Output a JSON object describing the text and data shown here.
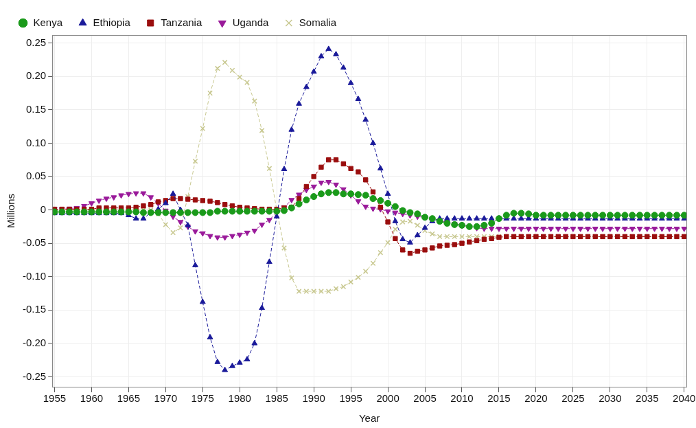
{
  "chart_data": {
    "type": "line",
    "xlabel": "Year",
    "ylabel": "Millions",
    "x": [
      1955,
      1956,
      1957,
      1958,
      1959,
      1960,
      1961,
      1962,
      1963,
      1964,
      1965,
      1966,
      1967,
      1968,
      1969,
      1970,
      1971,
      1972,
      1973,
      1974,
      1975,
      1976,
      1977,
      1978,
      1979,
      1980,
      1981,
      1982,
      1983,
      1984,
      1985,
      1986,
      1987,
      1988,
      1989,
      1990,
      1991,
      1992,
      1993,
      1994,
      1995,
      1996,
      1997,
      1998,
      1999,
      2000,
      2001,
      2002,
      2003,
      2004,
      2005,
      2006,
      2007,
      2008,
      2009,
      2010,
      2011,
      2012,
      2013,
      2014,
      2015,
      2016,
      2017,
      2018,
      2019,
      2020,
      2021,
      2022,
      2023,
      2024,
      2025,
      2026,
      2027,
      2028,
      2029,
      2030,
      2031,
      2032,
      2033,
      2034,
      2035,
      2036,
      2037,
      2038,
      2039,
      2040
    ],
    "series": [
      {
        "name": "Kenya",
        "color": "#1a9a1a",
        "marker": "circle",
        "values": [
          -0.003,
          -0.003,
          -0.003,
          -0.003,
          -0.003,
          -0.003,
          -0.003,
          -0.003,
          -0.003,
          -0.003,
          -0.003,
          -0.003,
          -0.004,
          -0.004,
          -0.004,
          -0.004,
          -0.004,
          -0.004,
          -0.004,
          -0.004,
          -0.004,
          -0.004,
          -0.002,
          -0.002,
          -0.002,
          -0.002,
          -0.002,
          -0.002,
          -0.002,
          -0.002,
          -0.002,
          -0.001,
          0.003,
          0.009,
          0.015,
          0.02,
          0.024,
          0.026,
          0.026,
          0.024,
          0.024,
          0.023,
          0.022,
          0.017,
          0.014,
          0.01,
          0.005,
          -0.001,
          -0.004,
          -0.006,
          -0.011,
          -0.013,
          -0.017,
          -0.02,
          -0.022,
          -0.023,
          -0.025,
          -0.025,
          -0.023,
          -0.02,
          -0.013,
          -0.008,
          -0.005,
          -0.005,
          -0.006,
          -0.008,
          -0.008,
          -0.008,
          -0.008,
          -0.008,
          -0.008,
          -0.008,
          -0.008,
          -0.008,
          -0.008,
          -0.008,
          -0.008,
          -0.008,
          -0.008,
          -0.008,
          -0.008,
          -0.008,
          -0.008,
          -0.008,
          -0.008,
          -0.008
        ]
      },
      {
        "name": "Ethiopia",
        "color": "#1a1a9a",
        "marker": "triangle",
        "values": [
          -0.005,
          -0.005,
          -0.005,
          -0.005,
          -0.005,
          -0.005,
          -0.005,
          -0.005,
          -0.005,
          -0.005,
          -0.008,
          -0.013,
          -0.013,
          -0.004,
          0.001,
          0.01,
          0.024,
          0,
          -0.023,
          -0.083,
          -0.138,
          -0.191,
          -0.228,
          -0.24,
          -0.234,
          -0.229,
          -0.224,
          -0.2,
          -0.147,
          -0.078,
          -0.01,
          0.061,
          0.12,
          0.159,
          0.184,
          0.207,
          0.23,
          0.241,
          0.233,
          0.213,
          0.19,
          0.166,
          0.135,
          0.1,
          0.062,
          0.024,
          -0.017,
          -0.044,
          -0.049,
          -0.038,
          -0.027,
          -0.017,
          -0.013,
          -0.013,
          -0.013,
          -0.013,
          -0.013,
          -0.013,
          -0.013,
          -0.013,
          -0.013,
          -0.013,
          -0.013,
          -0.013,
          -0.013,
          -0.013,
          -0.013,
          -0.013,
          -0.013,
          -0.013,
          -0.013,
          -0.013,
          -0.013,
          -0.013,
          -0.013,
          -0.013,
          -0.013,
          -0.013,
          -0.013,
          -0.013,
          -0.013,
          -0.013,
          -0.013,
          -0.013,
          -0.013,
          -0.013
        ]
      },
      {
        "name": "Tanzania",
        "color": "#9a0e0e",
        "marker": "square",
        "values": [
          0.001,
          0.001,
          0.001,
          0.001,
          0.001,
          0.001,
          0.003,
          0.003,
          0.003,
          0.003,
          0.003,
          0.004,
          0.006,
          0.008,
          0.012,
          0.014,
          0.017,
          0.017,
          0.016,
          0.015,
          0.014,
          0.013,
          0.011,
          0.008,
          0.006,
          0.004,
          0.003,
          0.002,
          0.001,
          0.001,
          0.001,
          0.003,
          0.004,
          0.017,
          0.035,
          0.05,
          0.064,
          0.075,
          0.075,
          0.069,
          0.062,
          0.057,
          0.045,
          0.027,
          0.004,
          -0.018,
          -0.043,
          -0.06,
          -0.065,
          -0.062,
          -0.06,
          -0.057,
          -0.054,
          -0.053,
          -0.052,
          -0.05,
          -0.048,
          -0.046,
          -0.044,
          -0.043,
          -0.041,
          -0.04,
          -0.04,
          -0.04,
          -0.04,
          -0.04,
          -0.04,
          -0.04,
          -0.04,
          -0.04,
          -0.04,
          -0.04,
          -0.04,
          -0.04,
          -0.04,
          -0.04,
          -0.04,
          -0.04,
          -0.04,
          -0.04,
          -0.04,
          -0.04,
          -0.04,
          -0.04,
          -0.04,
          -0.04
        ]
      },
      {
        "name": "Uganda",
        "color": "#9a1a9a",
        "marker": "triangle-down",
        "values": [
          0.001,
          0.001,
          0.002,
          0.003,
          0.006,
          0.01,
          0.014,
          0.017,
          0.019,
          0.022,
          0.024,
          0.025,
          0.025,
          0.019,
          0.01,
          -0.001,
          -0.01,
          -0.018,
          -0.025,
          -0.032,
          -0.035,
          -0.039,
          -0.041,
          -0.041,
          -0.039,
          -0.037,
          -0.034,
          -0.031,
          -0.022,
          -0.015,
          -0.004,
          0.004,
          0.015,
          0.023,
          0.03,
          0.035,
          0.041,
          0.042,
          0.038,
          0.031,
          0.022,
          0.013,
          0.005,
          0.002,
          0.001,
          -0.002,
          -0.004,
          -0.006,
          -0.008,
          -0.01,
          -0.011,
          -0.013,
          -0.016,
          -0.019,
          -0.021,
          -0.023,
          -0.025,
          -0.027,
          -0.028,
          -0.028,
          -0.028,
          -0.028,
          -0.028,
          -0.028,
          -0.028,
          -0.028,
          -0.028,
          -0.028,
          -0.028,
          -0.028,
          -0.028,
          -0.028,
          -0.028,
          -0.028,
          -0.028,
          -0.028,
          -0.028,
          -0.028,
          -0.028,
          -0.028,
          -0.028,
          -0.028,
          -0.028,
          -0.028,
          -0.028,
          -0.028
        ]
      },
      {
        "name": "Somalia",
        "color": "#c8c890",
        "marker": "cross",
        "values": [
          0,
          0,
          0,
          0,
          0,
          0,
          0,
          0,
          0,
          0,
          0,
          0,
          0,
          0,
          -0.006,
          -0.022,
          -0.034,
          -0.027,
          0.02,
          0.073,
          0.122,
          0.175,
          0.212,
          0.221,
          0.209,
          0.199,
          0.191,
          0.163,
          0.119,
          0.062,
          0,
          -0.057,
          -0.102,
          -0.122,
          -0.122,
          -0.122,
          -0.122,
          -0.122,
          -0.118,
          -0.115,
          -0.108,
          -0.101,
          -0.092,
          -0.08,
          -0.064,
          -0.049,
          -0.029,
          -0.018,
          -0.017,
          -0.023,
          -0.031,
          -0.036,
          -0.04,
          -0.04,
          -0.04,
          -0.04,
          -0.04,
          -0.04,
          -0.04,
          -0.04,
          -0.04,
          -0.04,
          -0.04,
          -0.04,
          -0.04,
          -0.04,
          -0.04,
          -0.04,
          -0.04,
          -0.04,
          -0.04,
          -0.04,
          -0.04,
          -0.04,
          -0.04,
          -0.04,
          -0.04,
          -0.04,
          -0.04,
          -0.04,
          -0.04,
          -0.04,
          -0.04,
          -0.04,
          -0.04,
          -0.04
        ]
      }
    ],
    "xlim": [
      1954.7,
      2040.3
    ],
    "xticks": [
      1955,
      1960,
      1965,
      1970,
      1975,
      1980,
      1985,
      1990,
      1995,
      2000,
      2005,
      2010,
      2015,
      2020,
      2025,
      2030,
      2035,
      2040
    ],
    "ylim": [
      -0.265,
      0.262
    ],
    "yticks": [
      0.25,
      {
        "value": 0.2,
        "label": "0.20"
      },
      0.15,
      {
        "value": 0.1,
        "label": "0.10"
      },
      0.05,
      0,
      -0.05,
      {
        "value": -0.1,
        "label": "-0.10"
      },
      -0.15,
      {
        "value": -0.2,
        "label": "-0.20"
      },
      -0.25
    ],
    "grid": true,
    "legend": "top left",
    "line_style": "dashed"
  }
}
